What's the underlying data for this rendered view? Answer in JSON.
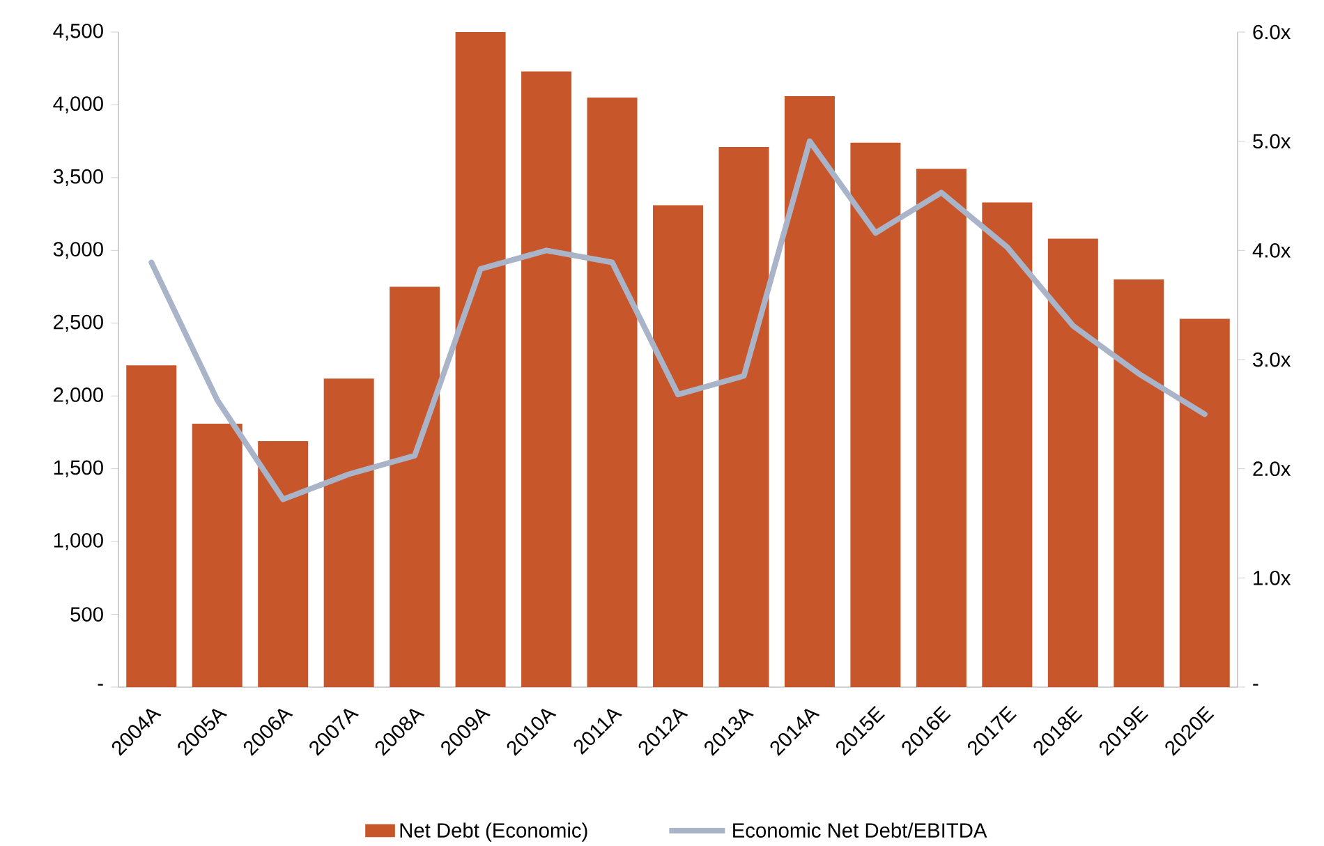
{
  "chart_data": {
    "type": "bar",
    "categories": [
      "2004A",
      "2005A",
      "2006A",
      "2007A",
      "2008A",
      "2009A",
      "2010A",
      "2011A",
      "2012A",
      "2013A",
      "2014A",
      "2015E",
      "2016E",
      "2017E",
      "2018E",
      "2019E",
      "2020E"
    ],
    "series": [
      {
        "name": "Net Debt (Economic)",
        "color": "#c8562b",
        "values": [
          2210,
          1810,
          1690,
          2120,
          2750,
          4500,
          4230,
          4050,
          3310,
          3710,
          4060,
          3740,
          3560,
          3330,
          3080,
          2800,
          2530
        ]
      },
      {
        "name": "Economic Net Debt/EBITDA",
        "type": "line",
        "axis": "y2",
        "color": "#a9b4c8",
        "values": [
          3.89,
          2.63,
          1.72,
          1.95,
          2.12,
          3.83,
          4.0,
          3.89,
          2.68,
          2.85,
          5.0,
          4.16,
          4.53,
          4.03,
          3.31,
          2.87,
          2.5
        ]
      }
    ],
    "ylim": [
      0,
      4500
    ],
    "yticks": [
      {
        "value": 0,
        "label": "-"
      },
      {
        "value": 500,
        "label": "500"
      },
      {
        "value": 1000,
        "label": "1,000"
      },
      {
        "value": 1500,
        "label": "1,500"
      },
      {
        "value": 2000,
        "label": "2,000"
      },
      {
        "value": 2500,
        "label": "2,500"
      },
      {
        "value": 3000,
        "label": "3,000"
      },
      {
        "value": 3500,
        "label": "3,500"
      },
      {
        "value": 4000,
        "label": "4,000"
      },
      {
        "value": 4500,
        "label": "4,500"
      }
    ],
    "y2lim": [
      0,
      6
    ],
    "y2ticks": [
      {
        "value": 0,
        "label": "-"
      },
      {
        "value": 1,
        "label": "1.0x"
      },
      {
        "value": 2,
        "label": "2.0x"
      },
      {
        "value": 3,
        "label": "3.0x"
      },
      {
        "value": 4,
        "label": "4.0x"
      },
      {
        "value": 5,
        "label": "5.0x"
      },
      {
        "value": 6,
        "label": "6.0x"
      }
    ],
    "legend": "bottom",
    "grid": false,
    "marker": "none",
    "line_style": "solid"
  }
}
